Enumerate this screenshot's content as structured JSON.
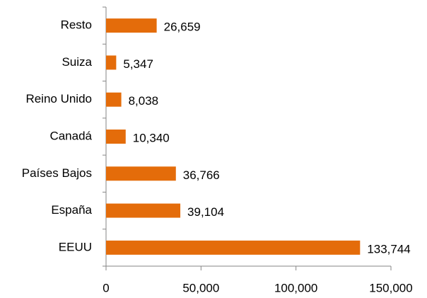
{
  "chart_data": {
    "type": "bar",
    "orientation": "horizontal",
    "categories": [
      "Resto",
      "Suiza",
      "Reino Unido",
      "Canadá",
      "Países Bajos",
      "España",
      "EEUU"
    ],
    "values": [
      26659,
      5347,
      8038,
      10340,
      36766,
      39104,
      133744
    ],
    "value_labels": [
      "26,659",
      "5,347",
      "8,038",
      "10,340",
      "36,766",
      "39,104",
      "133,744"
    ],
    "color": "#e46c0a",
    "xlim": [
      0,
      150000
    ],
    "xticks": [
      0,
      {
        "value": 50000,
        "label": "50,000"
      },
      {
        "value": 100000,
        "label": "100,000"
      },
      {
        "value": 150000,
        "label": "150,000"
      }
    ]
  }
}
